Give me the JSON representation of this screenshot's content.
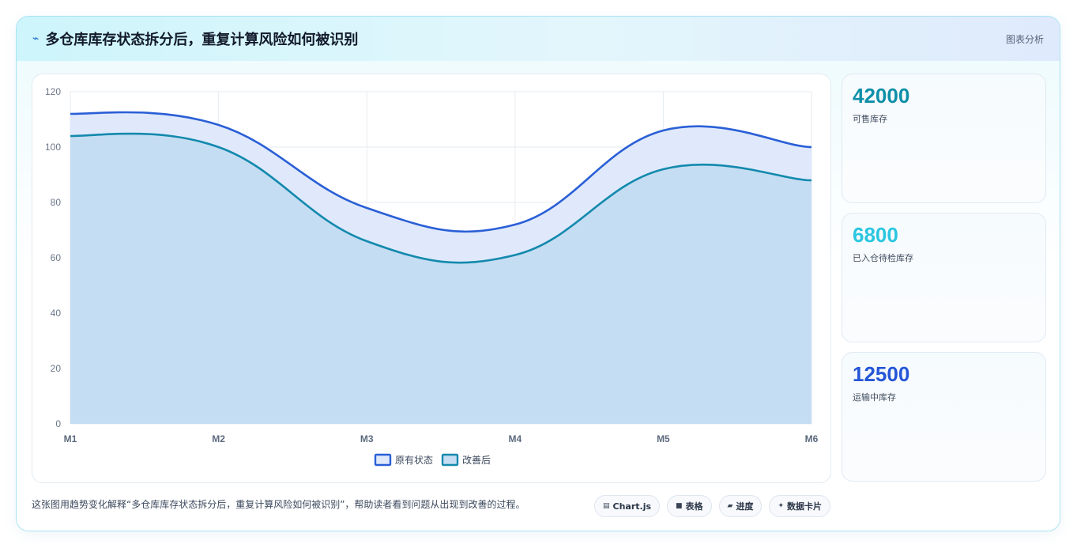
{
  "header": {
    "icon": "bolt-icon",
    "title": "多仓库库存状态拆分后，重复计算风险如何被识别",
    "tag": "图表分析"
  },
  "stats": [
    {
      "value": "42000",
      "label": "可售库存",
      "color": "#0e8fa8"
    },
    {
      "value": "6800",
      "label": "已入仓待检库存",
      "color": "#2ac6e0"
    },
    {
      "value": "12500",
      "label": "运输中库存",
      "color": "#2456d6"
    }
  ],
  "footer": {
    "caption": "这张图用趋势变化解释“多仓库库存状态拆分后，重复计算风险如何被识别”，帮助读者看到问题从出现到改善的过程。",
    "chips": [
      {
        "icon": "chart-icon",
        "glyph": "▤",
        "label": "Chart.js"
      },
      {
        "icon": "table-icon",
        "glyph": "■",
        "label": "表格"
      },
      {
        "icon": "progress-icon",
        "glyph": "▰",
        "label": "进度"
      },
      {
        "icon": "sparkle-icon",
        "glyph": "✦",
        "label": "数据卡片"
      }
    ]
  },
  "chart_data": {
    "type": "area",
    "categories": [
      "M1",
      "M2",
      "M3",
      "M4",
      "M5",
      "M6"
    ],
    "ylim": [
      0,
      120
    ],
    "yticks": [
      0,
      20,
      40,
      60,
      80,
      100,
      120
    ],
    "grid": true,
    "legend": "bottom",
    "series": [
      {
        "name": "原有状态",
        "values": [
          112,
          108,
          78,
          72,
          106,
          100
        ],
        "color": "#2a5fd6",
        "fill": "#dfe9fb"
      },
      {
        "name": "改善后",
        "values": [
          104,
          100,
          66,
          61,
          92,
          88
        ],
        "color": "#1389ad",
        "fill": "#c5ddf2"
      }
    ]
  }
}
